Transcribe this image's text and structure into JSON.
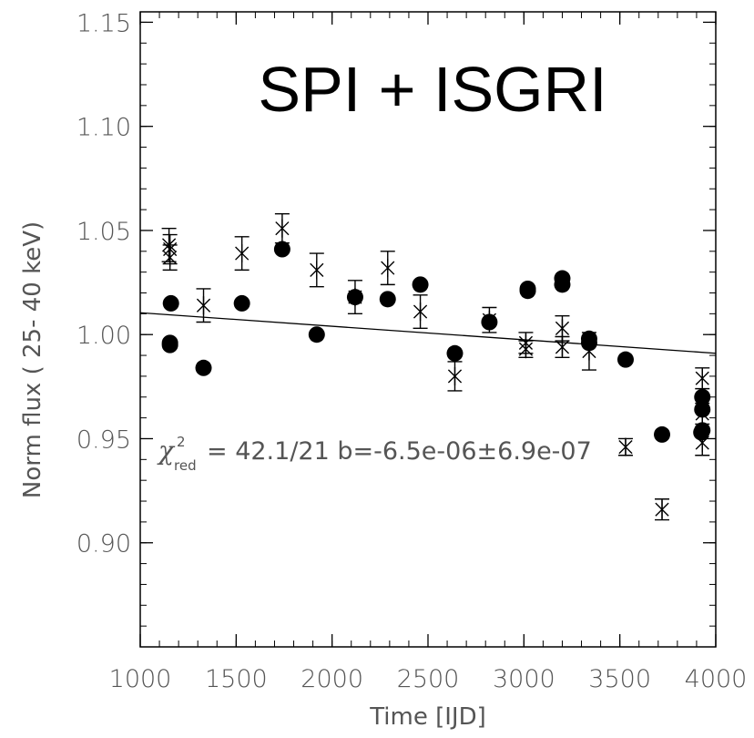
{
  "chart_data": {
    "type": "scatter",
    "title": "SPI + ISGRI",
    "xlabel": "Time [IJD]",
    "ylabel": "Norm flux (  25-   40 keV)",
    "xlim": [
      1000,
      4000
    ],
    "ylim": [
      0.85,
      1.155
    ],
    "x_ticks": [
      1000,
      1500,
      2000,
      2500,
      3000,
      3500,
      4000
    ],
    "x_tick_labels": [
      "1000",
      "1500",
      "2000",
      "2500",
      "3000",
      "3500",
      "4000"
    ],
    "y_ticks": [
      0.9,
      0.95,
      1.0,
      1.05,
      1.1,
      1.15
    ],
    "y_tick_labels": [
      "0.90",
      "0.95",
      "1.00",
      "1.05",
      "1.10",
      "1.15"
    ],
    "annotation": {
      "chi_symbol": "χ",
      "chi_sup": "2",
      "chi_sub": "red",
      "text": "= 42.1/21 b=-6.5e-06±6.9e-07"
    },
    "fit_line": {
      "x": [
        1000,
        4000
      ],
      "y": [
        1.0105,
        0.991
      ]
    },
    "series": [
      {
        "marker": "circle",
        "points": [
          {
            "x": 1160,
            "y": 1.015
          },
          {
            "x": 1155,
            "y": 0.996
          },
          {
            "x": 1155,
            "y": 0.995
          },
          {
            "x": 1330,
            "y": 0.984
          },
          {
            "x": 1530,
            "y": 1.015
          },
          {
            "x": 1740,
            "y": 1.041
          },
          {
            "x": 1920,
            "y": 1.0
          },
          {
            "x": 2120,
            "y": 1.018
          },
          {
            "x": 2290,
            "y": 1.017
          },
          {
            "x": 2460,
            "y": 1.024
          },
          {
            "x": 2640,
            "y": 0.991
          },
          {
            "x": 2820,
            "y": 1.006
          },
          {
            "x": 3020,
            "y": 1.022
          },
          {
            "x": 3020,
            "y": 1.021
          },
          {
            "x": 3200,
            "y": 1.027
          },
          {
            "x": 3200,
            "y": 1.024
          },
          {
            "x": 3340,
            "y": 0.998
          },
          {
            "x": 3340,
            "y": 0.996
          },
          {
            "x": 3530,
            "y": 0.988
          },
          {
            "x": 3720,
            "y": 0.952
          },
          {
            "x": 3930,
            "y": 0.97
          },
          {
            "x": 3930,
            "y": 0.964
          },
          {
            "x": 3930,
            "y": 0.954
          },
          {
            "x": 3925,
            "y": 0.953
          }
        ]
      },
      {
        "marker": "asterisk",
        "points": [
          {
            "x": 1150,
            "y": 1.043,
            "err": 0.008
          },
          {
            "x": 1155,
            "y": 1.041,
            "err": 0.007
          },
          {
            "x": 1155,
            "y": 1.037,
            "err": 0.006
          },
          {
            "x": 1330,
            "y": 1.014,
            "err": 0.008
          },
          {
            "x": 1530,
            "y": 1.039,
            "err": 0.008
          },
          {
            "x": 1740,
            "y": 1.051,
            "err": 0.007
          },
          {
            "x": 1920,
            "y": 1.031,
            "err": 0.008
          },
          {
            "x": 2120,
            "y": 1.018,
            "err": 0.008
          },
          {
            "x": 2290,
            "y": 1.032,
            "err": 0.008
          },
          {
            "x": 2460,
            "y": 1.011,
            "err": 0.008
          },
          {
            "x": 2640,
            "y": 0.98,
            "err": 0.007
          },
          {
            "x": 2820,
            "y": 1.007,
            "err": 0.006
          },
          {
            "x": 3010,
            "y": 0.996,
            "err": 0.005
          },
          {
            "x": 3010,
            "y": 0.993,
            "err": 0.004
          },
          {
            "x": 3200,
            "y": 1.003,
            "err": 0.006
          },
          {
            "x": 3200,
            "y": 0.994,
            "err": 0.005
          },
          {
            "x": 3340,
            "y": 0.992,
            "err": 0.009
          },
          {
            "x": 3530,
            "y": 0.946,
            "err": 0.004
          },
          {
            "x": 3720,
            "y": 0.916,
            "err": 0.005
          },
          {
            "x": 3930,
            "y": 0.979,
            "err": 0.005
          },
          {
            "x": 3930,
            "y": 0.962,
            "err": 0.005
          },
          {
            "x": 3930,
            "y": 0.948,
            "err": 0.006
          }
        ]
      }
    ]
  }
}
